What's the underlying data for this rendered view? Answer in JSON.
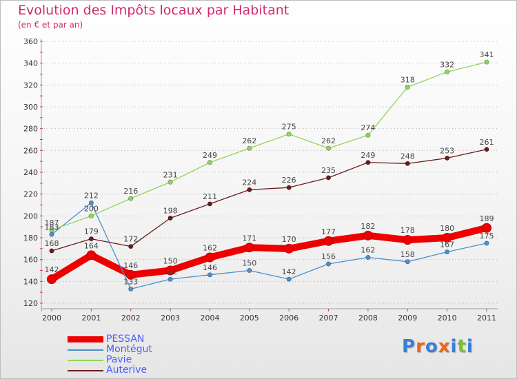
{
  "header": {
    "title": "Evolution des Impôts locaux par Habitant",
    "subtitle": "(en € et par an)"
  },
  "logo": {
    "text": "Proxiti",
    "colors": [
      "#3a7ed8",
      "#e8671c",
      "#3a7ed8",
      "#e8671c",
      "#3a7ed8",
      "#7cbf2a",
      "#3a7ed8"
    ]
  },
  "chart_data": {
    "type": "line",
    "x": [
      2000,
      2001,
      2002,
      2003,
      2004,
      2005,
      2006,
      2007,
      2008,
      2009,
      2010,
      2011
    ],
    "ylim": [
      120,
      360
    ],
    "yticks": [
      120,
      140,
      160,
      180,
      200,
      220,
      240,
      260,
      280,
      300,
      320,
      340,
      360
    ],
    "grid": "horizontal dotted",
    "legend_placement": "bottom-left",
    "series": [
      {
        "name": "PESSAN",
        "color": "#ee0000",
        "width": 10,
        "values": [
          142,
          164,
          146,
          150,
          162,
          171,
          170,
          177,
          182,
          178,
          180,
          189
        ]
      },
      {
        "name": "Montégut",
        "color": "#4a90d0",
        "width": 1.3,
        "values": [
          183,
          212,
          133,
          142,
          146,
          150,
          142,
          156,
          162,
          158,
          167,
          175
        ]
      },
      {
        "name": "Pavie",
        "color": "#8fd65a",
        "width": 1.3,
        "values": [
          187,
          200,
          216,
          231,
          249,
          262,
          275,
          262,
          274,
          318,
          332,
          341
        ]
      },
      {
        "name": "Auterive",
        "color": "#6b1a1a",
        "width": 1.3,
        "values": [
          168,
          179,
          172,
          198,
          211,
          224,
          226,
          235,
          249,
          248,
          253,
          261
        ]
      }
    ]
  }
}
